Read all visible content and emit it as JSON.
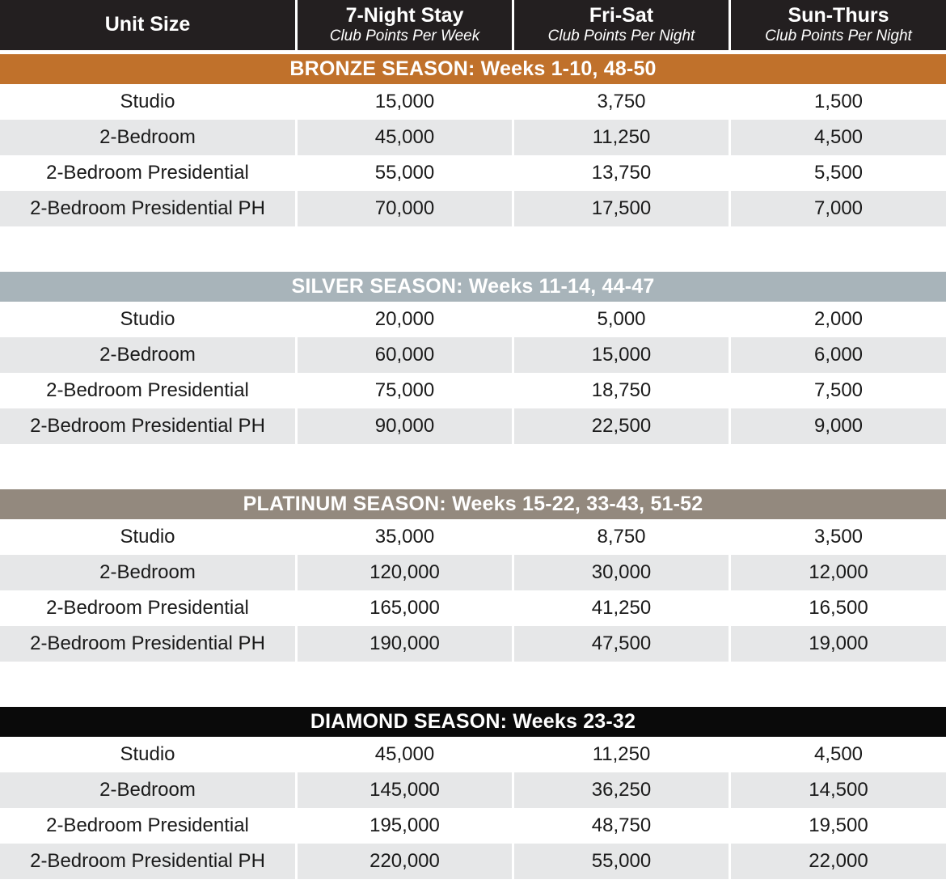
{
  "header": {
    "columns": [
      {
        "title": "Unit Size",
        "subtitle": ""
      },
      {
        "title": "7-Night Stay",
        "subtitle": "Club Points Per Week"
      },
      {
        "title": "Fri-Sat",
        "subtitle": "Club Points Per Night"
      },
      {
        "title": "Sun-Thurs",
        "subtitle": "Club Points Per Night"
      }
    ]
  },
  "colors": {
    "header_bg": "#231f20",
    "row_alt": "#e6e7e8",
    "bronze": "#c0712b",
    "silver": "#a8b4ba",
    "platinum": "#93897e",
    "diamond": "#0a0a0a"
  },
  "chart_data": {
    "type": "table",
    "columns": [
      "Unit Size",
      "7-Night Stay (Club Points Per Week)",
      "Fri-Sat (Club Points Per Night)",
      "Sun-Thurs (Club Points Per Night)"
    ],
    "sections": [
      {
        "season": "BRONZE SEASON: Weeks 1-10, 48-50",
        "band_color": "#c0712b",
        "text_color": "#ffffff",
        "rows": [
          [
            "Studio",
            "15,000",
            "3,750",
            "1,500"
          ],
          [
            "2-Bedroom",
            "45,000",
            "11,250",
            "4,500"
          ],
          [
            "2-Bedroom Presidential",
            "55,000",
            "13,750",
            "5,500"
          ],
          [
            "2-Bedroom Presidential PH",
            "70,000",
            "17,500",
            "7,000"
          ]
        ]
      },
      {
        "season": "SILVER SEASON: Weeks 11-14, 44-47",
        "band_color": "#a8b4ba",
        "text_color": "#ffffff",
        "rows": [
          [
            "Studio",
            "20,000",
            "5,000",
            "2,000"
          ],
          [
            "2-Bedroom",
            "60,000",
            "15,000",
            "6,000"
          ],
          [
            "2-Bedroom Presidential",
            "75,000",
            "18,750",
            "7,500"
          ],
          [
            "2-Bedroom Presidential PH",
            "90,000",
            "22,500",
            "9,000"
          ]
        ]
      },
      {
        "season": "PLATINUM SEASON: Weeks 15-22, 33-43, 51-52",
        "band_color": "#93897e",
        "text_color": "#ffffff",
        "rows": [
          [
            "Studio",
            "35,000",
            "8,750",
            "3,500"
          ],
          [
            "2-Bedroom",
            "120,000",
            "30,000",
            "12,000"
          ],
          [
            "2-Bedroom Presidential",
            "165,000",
            "41,250",
            "16,500"
          ],
          [
            "2-Bedroom Presidential PH",
            "190,000",
            "47,500",
            "19,000"
          ]
        ]
      },
      {
        "season": "DIAMOND SEASON: Weeks 23-32",
        "band_color": "#0a0a0a",
        "text_color": "#ffffff",
        "rows": [
          [
            "Studio",
            "45,000",
            "11,250",
            "4,500"
          ],
          [
            "2-Bedroom",
            "145,000",
            "36,250",
            "14,500"
          ],
          [
            "2-Bedroom Presidential",
            "195,000",
            "48,750",
            "19,500"
          ],
          [
            "2-Bedroom Presidential PH",
            "220,000",
            "55,000",
            "22,000"
          ]
        ]
      }
    ]
  }
}
